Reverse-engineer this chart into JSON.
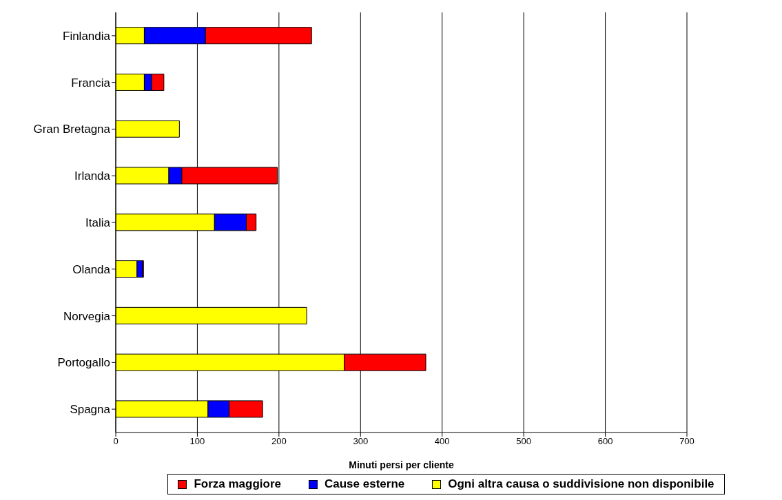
{
  "chart_data": {
    "type": "bar",
    "orientation": "horizontal",
    "stacked": true,
    "xlabel": "Minuti persi per cliente",
    "categories": [
      "Finlandia",
      "Francia",
      "Gran Bretagna",
      "Irlanda",
      "Italia",
      "Olanda",
      "Norvegia",
      "Portogallo",
      "Spagna"
    ],
    "series": [
      {
        "name": "Ogni altra causa o suddivisione non disponibile",
        "color": "#ffff00",
        "values": [
          35,
          35,
          78,
          65,
          121,
          26,
          234,
          280,
          113
        ]
      },
      {
        "name": "Cause esterne",
        "color": "#0000ff",
        "values": [
          75,
          9,
          null,
          16,
          39,
          7,
          null,
          null,
          26
        ]
      },
      {
        "name": "Forza maggiore",
        "color": "#ff0000",
        "values": [
          130,
          15,
          null,
          117,
          12,
          1,
          null,
          100,
          41
        ]
      }
    ],
    "xlim": [
      0,
      700
    ],
    "xticks": [
      0,
      100,
      200,
      300,
      400,
      500,
      600,
      700
    ],
    "grid": "x",
    "legend": "bottom"
  }
}
